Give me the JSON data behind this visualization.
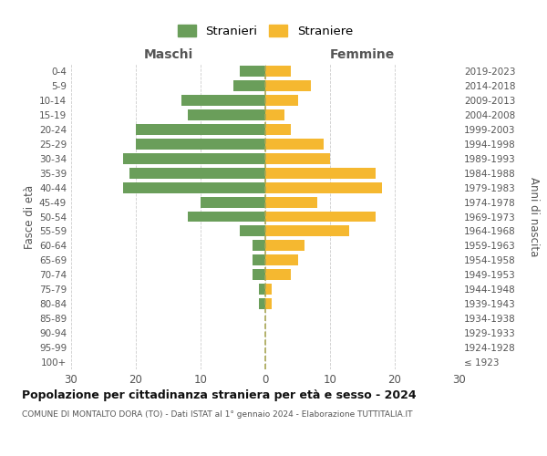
{
  "age_groups": [
    "100+",
    "95-99",
    "90-94",
    "85-89",
    "80-84",
    "75-79",
    "70-74",
    "65-69",
    "60-64",
    "55-59",
    "50-54",
    "45-49",
    "40-44",
    "35-39",
    "30-34",
    "25-29",
    "20-24",
    "15-19",
    "10-14",
    "5-9",
    "0-4"
  ],
  "birth_years": [
    "≤ 1923",
    "1924-1928",
    "1929-1933",
    "1934-1938",
    "1939-1943",
    "1944-1948",
    "1949-1953",
    "1954-1958",
    "1959-1963",
    "1964-1968",
    "1969-1973",
    "1974-1978",
    "1979-1983",
    "1984-1988",
    "1989-1993",
    "1994-1998",
    "1999-2003",
    "2004-2008",
    "2009-2013",
    "2014-2018",
    "2019-2023"
  ],
  "maschi": [
    0,
    0,
    0,
    0,
    1,
    1,
    2,
    2,
    2,
    4,
    12,
    10,
    22,
    21,
    22,
    20,
    20,
    12,
    13,
    5,
    4
  ],
  "femmine": [
    0,
    0,
    0,
    0,
    1,
    1,
    4,
    5,
    6,
    13,
    17,
    8,
    18,
    17,
    10,
    9,
    4,
    3,
    5,
    7,
    4
  ],
  "color_maschi": "#6a9e5a",
  "color_femmine": "#f5b830",
  "grid_color": "#cccccc",
  "dashed_line_color": "#aaa855",
  "title": "Popolazione per cittadinanza straniera per età e sesso - 2024",
  "subtitle": "COMUNE DI MONTALTO DORA (TO) - Dati ISTAT al 1° gennaio 2024 - Elaborazione TUTTITALIA.IT",
  "header_left": "Maschi",
  "header_right": "Femmine",
  "ylabel_left": "Fasce di età",
  "ylabel_right": "Anni di nascita",
  "legend_maschi": "Stranieri",
  "legend_femmine": "Straniere",
  "xlim": 30,
  "bar_height": 0.75
}
